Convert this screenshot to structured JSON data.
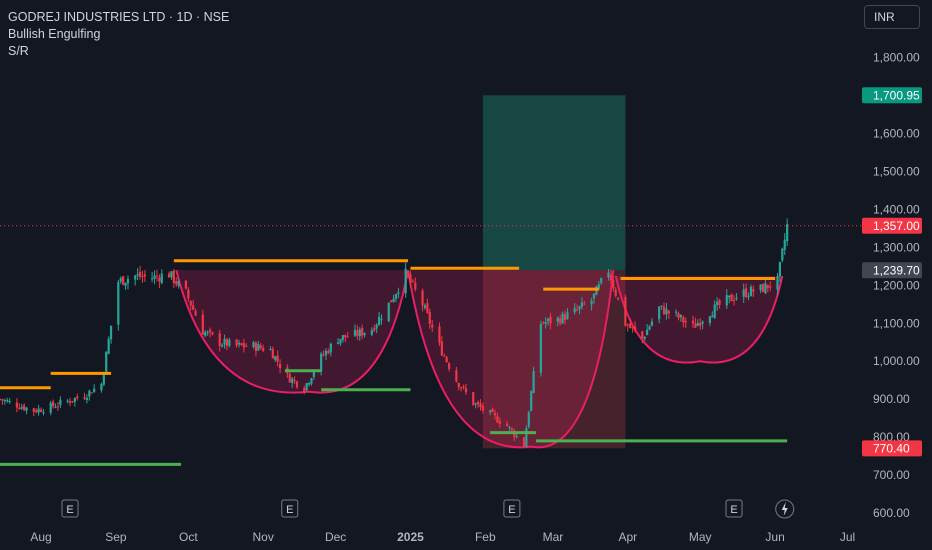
{
  "header": {
    "title": "GODREJ INDUSTRIES LTD · 1D · NSE",
    "indicators": [
      "Bullish Engulfing",
      "S/R"
    ]
  },
  "currency_button": "INR",
  "events_marker": "E",
  "colors": {
    "background": "#131722",
    "up": "#26a69a",
    "down": "#f23645",
    "resistance": "#ff9800",
    "support": "#4caf50",
    "pattern": "#e91e63",
    "target_zone": "#1a5c50",
    "stop_zone": "#5c2a30",
    "current_price_bg": "#f23645",
    "target_price_bg": "#089981",
    "gray_price_bg": "#434651"
  },
  "chart_data": {
    "type": "candlestick",
    "title": "GODREJ INDUSTRIES LTD · 1D · NSE",
    "x_ticks": [
      "Aug",
      "Sep",
      "Oct",
      "Nov",
      "Dec",
      "2025",
      "Feb",
      "Mar",
      "Apr",
      "May",
      "Jun",
      "Jul"
    ],
    "y_ticks": [
      "600.00",
      "700.00",
      "800.00",
      "900.00",
      "1,000.00",
      "1,100.00",
      "1,200.00",
      "1,300.00",
      "1,400.00",
      "1,500.00",
      "1,600.00",
      "1,700.00",
      "1,800.00"
    ],
    "ylim": [
      585,
      1880
    ],
    "price_labels": [
      {
        "value": 1700.95,
        "text": "1,700.95",
        "style": "target"
      },
      {
        "value": 1357.0,
        "text": "1,357.00",
        "style": "current"
      },
      {
        "value": 1239.7,
        "text": "1,239.70",
        "style": "gray"
      },
      {
        "value": 770.4,
        "text": "770.40",
        "style": "current"
      }
    ],
    "current_price": 1357.0,
    "price_path": [
      [
        "2024-07-15",
        900
      ],
      [
        "2024-07-22",
        885
      ],
      [
        "2024-07-29",
        870
      ],
      [
        "2024-08-05",
        880
      ],
      [
        "2024-08-12",
        895
      ],
      [
        "2024-08-19",
        910
      ],
      [
        "2024-08-26",
        940
      ],
      [
        "2024-09-02",
        1210
      ],
      [
        "2024-09-09",
        1225
      ],
      [
        "2024-09-16",
        1220
      ],
      [
        "2024-09-23",
        1230
      ],
      [
        "2024-09-30",
        1180
      ],
      [
        "2024-10-07",
        1080
      ],
      [
        "2024-10-14",
        1050
      ],
      [
        "2024-10-21",
        1040
      ],
      [
        "2024-10-28",
        1040
      ],
      [
        "2024-11-04",
        1030
      ],
      [
        "2024-11-11",
        960
      ],
      [
        "2024-11-18",
        930
      ],
      [
        "2024-11-25",
        1010
      ],
      [
        "2024-12-02",
        1060
      ],
      [
        "2024-12-09",
        1070
      ],
      [
        "2024-12-16",
        1085
      ],
      [
        "2024-12-23",
        1150
      ],
      [
        "2024-12-30",
        1230
      ],
      [
        "2025-01-06",
        1150
      ],
      [
        "2025-01-13",
        1040
      ],
      [
        "2025-01-20",
        950
      ],
      [
        "2025-01-27",
        890
      ],
      [
        "2025-02-03",
        860
      ],
      [
        "2025-02-10",
        830
      ],
      [
        "2025-02-17",
        780
      ],
      [
        "2025-02-24",
        1100
      ],
      [
        "2025-03-03",
        1110
      ],
      [
        "2025-03-10",
        1130
      ],
      [
        "2025-03-17",
        1160
      ],
      [
        "2025-03-24",
        1240
      ],
      [
        "2025-03-31",
        1100
      ],
      [
        "2025-04-07",
        1060
      ],
      [
        "2025-04-14",
        1140
      ],
      [
        "2025-04-21",
        1120
      ],
      [
        "2025-04-28",
        1090
      ],
      [
        "2025-05-05",
        1130
      ],
      [
        "2025-05-12",
        1160
      ],
      [
        "2025-05-19",
        1180
      ],
      [
        "2025-05-26",
        1190
      ],
      [
        "2025-06-02",
        1210
      ],
      [
        "2025-06-06",
        1357
      ]
    ],
    "resistance_levels": [
      {
        "start": "2024-07-15",
        "end": "2024-08-05",
        "value": 930
      },
      {
        "start": "2024-08-05",
        "end": "2024-08-30",
        "value": 968
      },
      {
        "start": "2024-09-25",
        "end": "2024-12-31",
        "value": 1265
      },
      {
        "start": "2025-01-01",
        "end": "2025-02-15",
        "value": 1245
      },
      {
        "start": "2025-02-25",
        "end": "2025-03-20",
        "value": 1190
      },
      {
        "start": "2025-03-29",
        "end": "2025-06-01",
        "value": 1218
      }
    ],
    "support_levels": [
      {
        "start": "2024-07-15",
        "end": "2024-09-28",
        "value": 728
      },
      {
        "start": "2024-11-10",
        "end": "2024-11-25",
        "value": 975
      },
      {
        "start": "2024-11-25",
        "end": "2025-01-01",
        "value": 925
      },
      {
        "start": "2025-02-03",
        "end": "2025-02-22",
        "value": 812
      },
      {
        "start": "2025-02-22",
        "end": "2025-06-06",
        "value": 790
      }
    ],
    "cup_patterns": [
      {
        "start": "2024-09-26",
        "low": "2024-11-20",
        "end": "2024-12-31",
        "rim": 1240,
        "bottom": 920
      },
      {
        "start": "2024-12-31",
        "low": "2025-02-20",
        "end": "2025-03-26",
        "rim": 1240,
        "bottom": 775
      },
      {
        "start": "2025-03-27",
        "low": "2025-05-01",
        "end": "2025-06-04",
        "rim": 1225,
        "bottom": 1000
      }
    ],
    "position": {
      "start": "2025-01-31",
      "end": "2025-03-31",
      "entry": 1239.7,
      "target": 1700.95,
      "stop": 770.4
    },
    "event_dates": [
      "2024-08-13",
      "2024-11-12",
      "2025-02-12",
      "2025-05-15"
    ],
    "dividend_date": "2025-06-05",
    "grid": false,
    "legend": "top-left"
  }
}
